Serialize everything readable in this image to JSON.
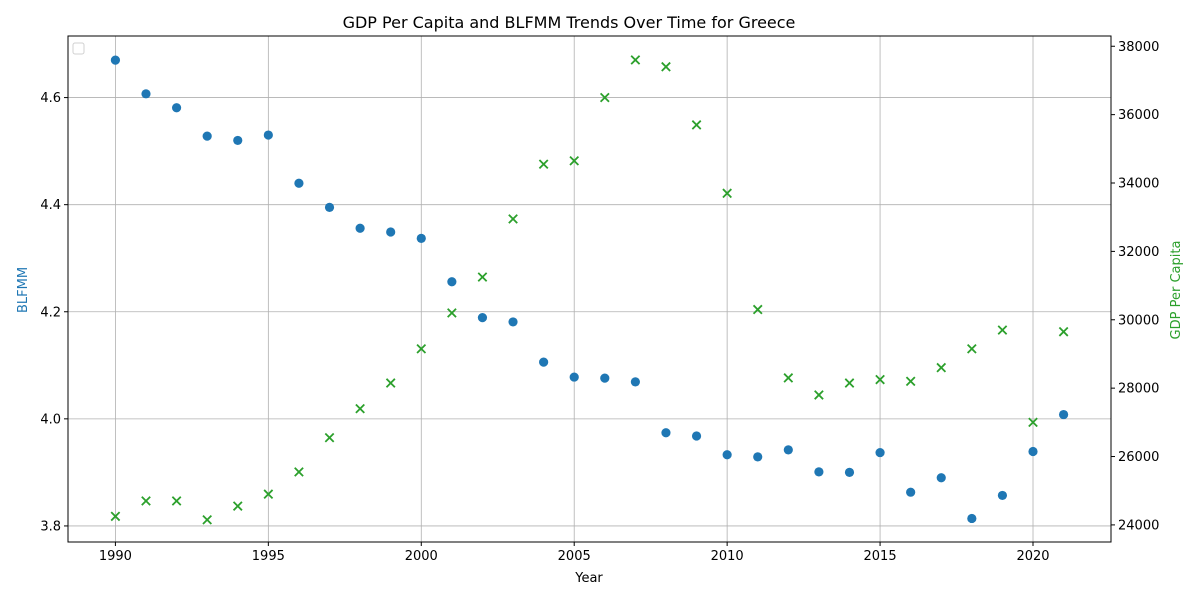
{
  "chart_data": {
    "type": "scatter",
    "title": "GDP Per Capita and BLFMM Trends Over Time for Greece",
    "xlabel": "Year",
    "ylabel_left": "BLFMM",
    "ylabel_right": "GDP Per Capita",
    "xlim": [
      1988.45,
      2022.55
    ],
    "ylim_left": [
      3.77,
      4.715
    ],
    "ylim_right": [
      23500,
      38300
    ],
    "x_ticks": [
      1990,
      1995,
      2000,
      2005,
      2010,
      2015,
      2020
    ],
    "y_ticks_left": [
      3.8,
      4.0,
      4.2,
      4.4,
      4.6
    ],
    "y_ticks_right": [
      24000,
      26000,
      28000,
      30000,
      32000,
      34000,
      36000,
      38000
    ],
    "grid": true,
    "legend": "top-left (empty)",
    "x": [
      1990,
      1991,
      1992,
      1993,
      1994,
      1995,
      1996,
      1997,
      1998,
      1999,
      2000,
      2001,
      2002,
      2003,
      2004,
      2005,
      2006,
      2007,
      2008,
      2009,
      2010,
      2011,
      2012,
      2013,
      2014,
      2015,
      2016,
      2017,
      2018,
      2019,
      2020,
      2021
    ],
    "series": [
      {
        "axis": "left",
        "marker": "circle",
        "color": "#1f77b4",
        "values": [
          4.67,
          4.607,
          4.581,
          4.528,
          4.52,
          4.53,
          4.44,
          4.395,
          4.356,
          4.349,
          4.337,
          4.256,
          4.189,
          4.181,
          4.106,
          4.078,
          4.076,
          4.069,
          3.974,
          3.968,
          3.933,
          3.929,
          3.942,
          3.901,
          3.9,
          3.937,
          3.863,
          3.89,
          3.814,
          3.857,
          3.939,
          4.008
        ]
      },
      {
        "axis": "right",
        "marker": "x",
        "color": "#2ca02c",
        "values": [
          24250,
          24700,
          24700,
          24150,
          24550,
          24900,
          25550,
          26550,
          27400,
          28150,
          29150,
          30200,
          31250,
          32950,
          34550,
          34650,
          36500,
          37600,
          37400,
          35700,
          33700,
          30300,
          28300,
          27800,
          28150,
          28250,
          28200,
          28600,
          29150,
          29700,
          27000,
          29650
        ]
      }
    ]
  }
}
